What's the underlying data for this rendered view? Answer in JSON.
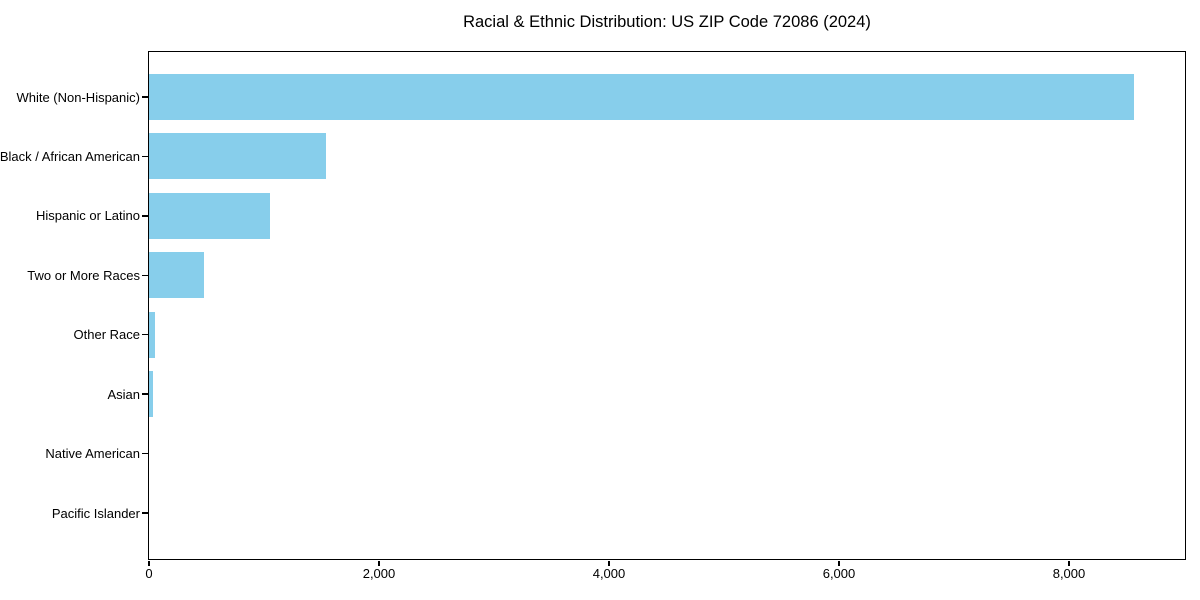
{
  "chart_data": {
    "type": "bar",
    "orientation": "horizontal",
    "title": "Racial & Ethnic Distribution: US ZIP Code 72086 (2024)",
    "categories": [
      "White (Non-Hispanic)",
      "Black / African American",
      "Hispanic or Latino",
      "Two or More Races",
      "Other Race",
      "Asian",
      "Native American",
      "Pacific Islander"
    ],
    "values": [
      8565,
      1540,
      1050,
      480,
      55,
      35,
      0,
      0
    ],
    "xlabel": "",
    "ylabel": "",
    "xlim": [
      0,
      9000
    ],
    "x_ticks": [
      0,
      2000,
      4000,
      6000,
      8000
    ],
    "x_tick_labels": [
      "0",
      "2,000",
      "4,000",
      "6,000",
      "8,000"
    ],
    "bar_color": "#87CEEB",
    "axis_color": "#000000",
    "text_color": "#000000",
    "background_color": "#FFFFFF",
    "grid": false,
    "legend": "none"
  }
}
